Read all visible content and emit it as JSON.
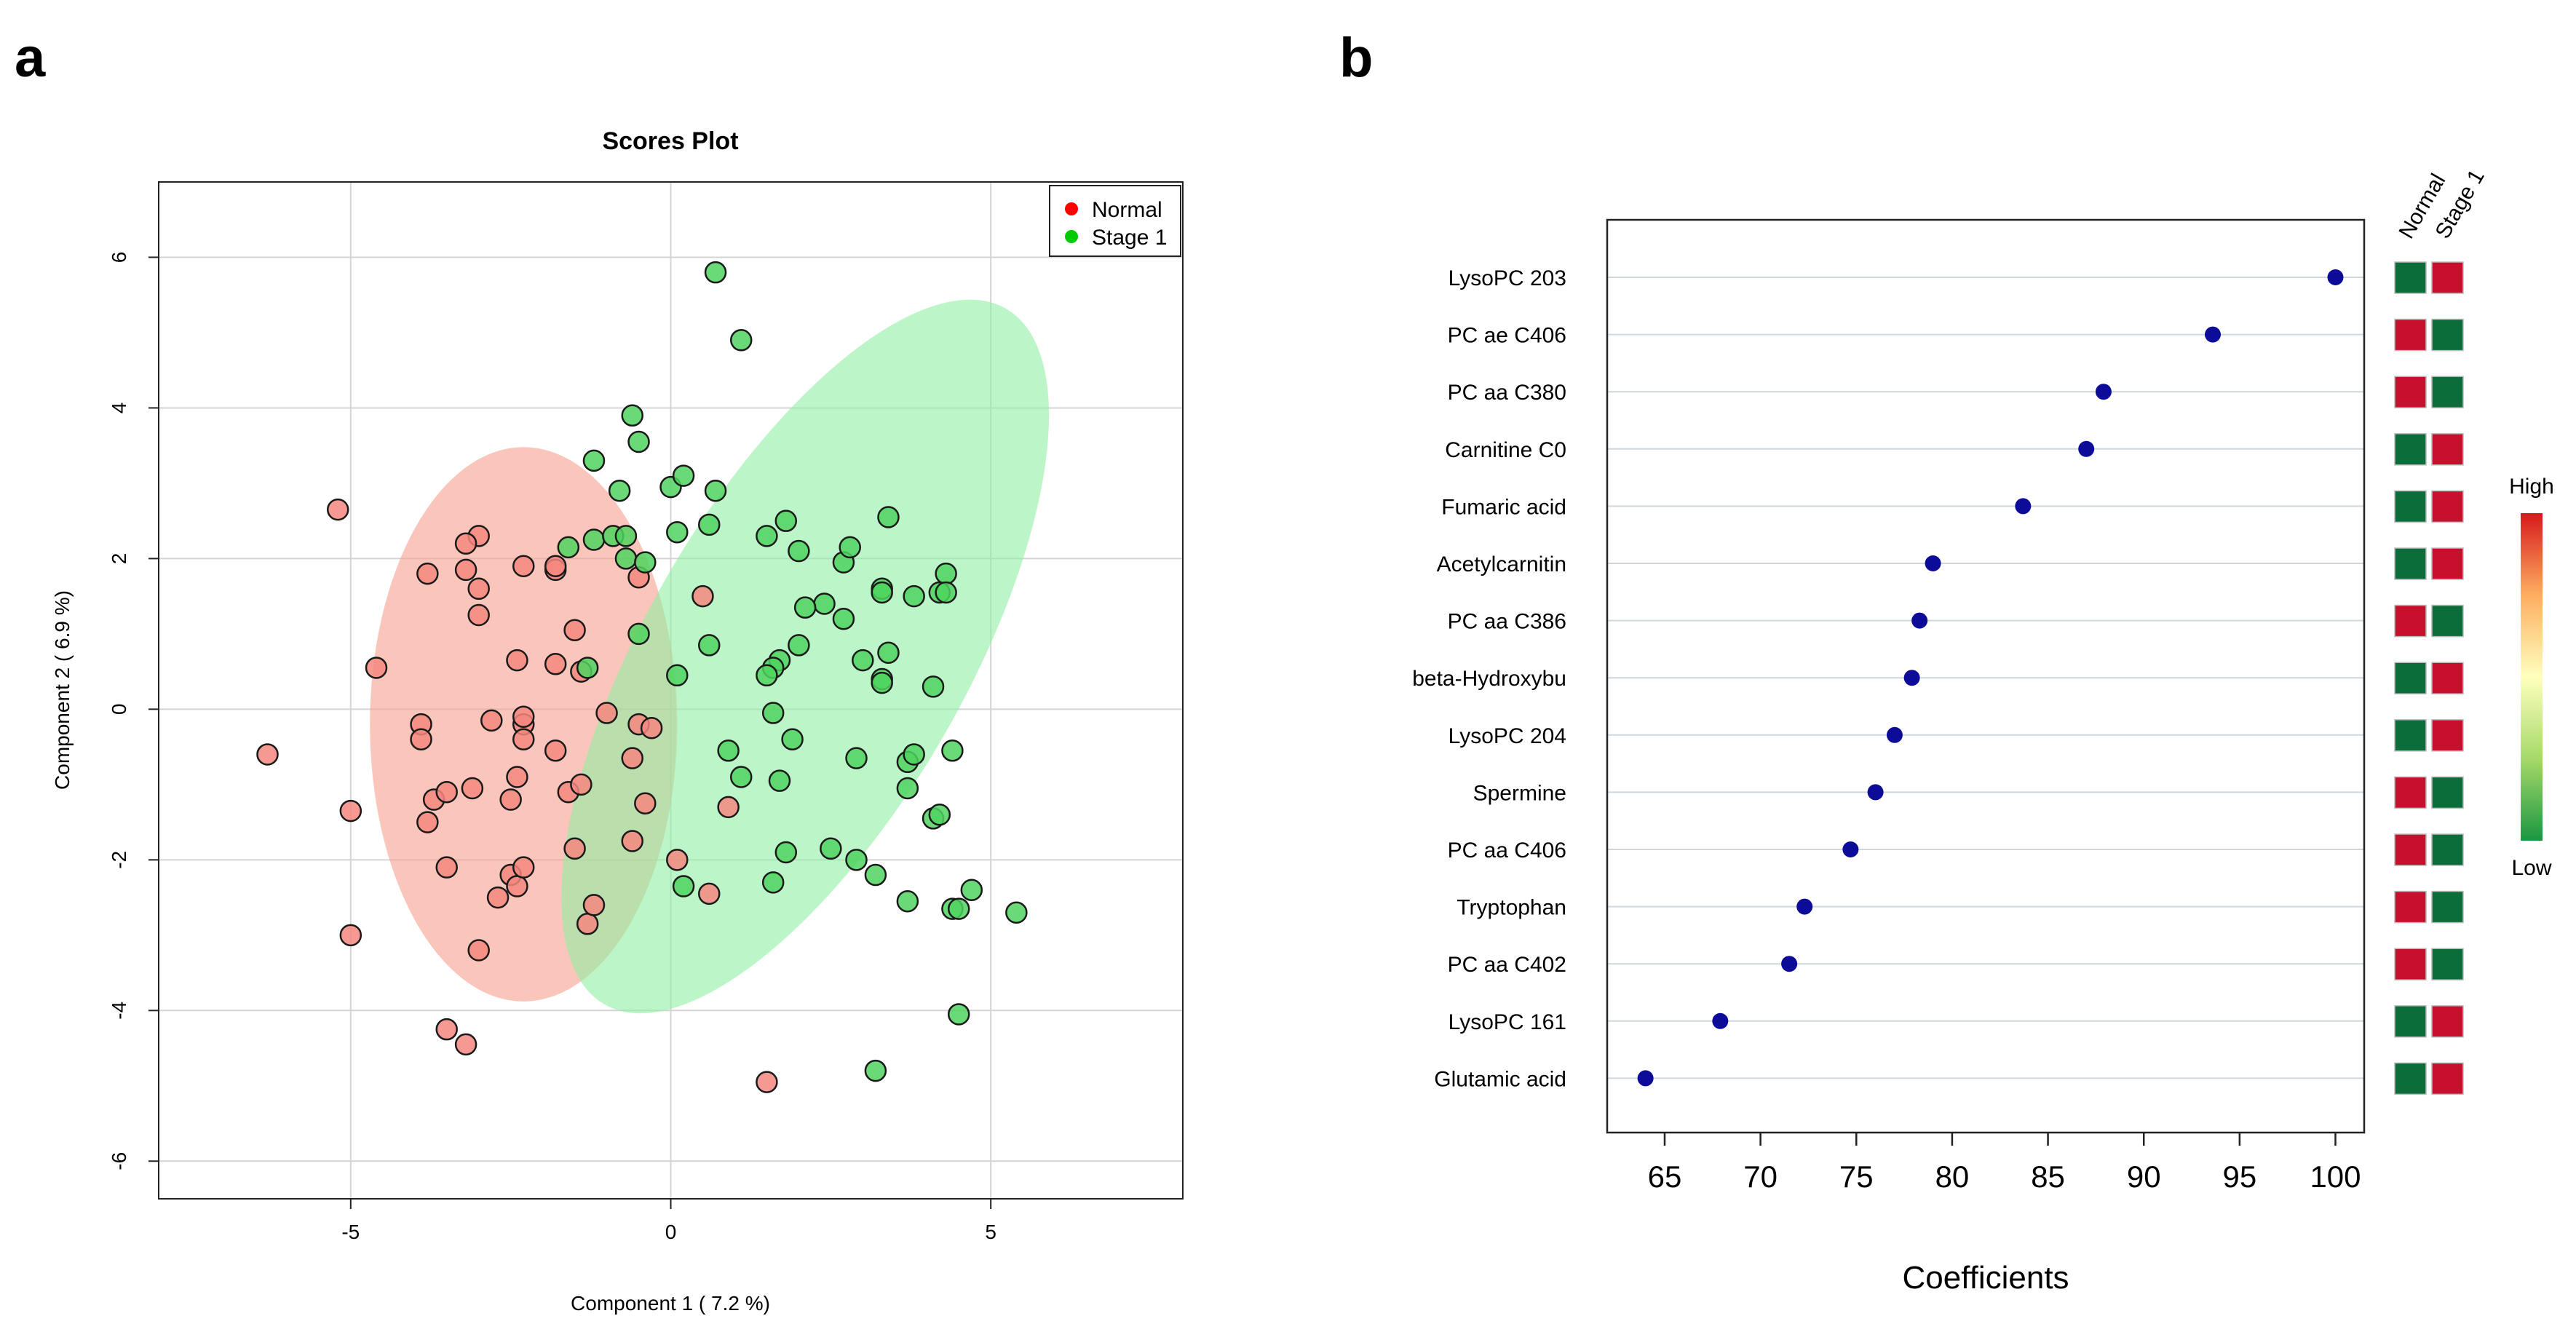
{
  "panels": {
    "a": "a",
    "b": "b"
  },
  "chart_data": [
    {
      "type": "scatter",
      "title": "Scores Plot",
      "xlabel": "Component 1 ( 7.2 %)",
      "ylabel": "Component 2 ( 6.9 %)",
      "xlim": [
        -8,
        8
      ],
      "ylim": [
        -6.5,
        7
      ],
      "xticks": [
        -5,
        0,
        5
      ],
      "yticks": [
        -6,
        -4,
        -2,
        0,
        2,
        4,
        6
      ],
      "legend": {
        "position": "top-right",
        "entries": [
          "Normal",
          "Stage 1"
        ]
      },
      "colors": {
        "Normal": "#ff0000",
        "Stage 1": "#00cc00",
        "Normal_point": "#f4877f",
        "Stage 1_point": "#4fd35f",
        "Normal_ellipse": "#f7a08f",
        "Stage 1_ellipse": "#8ff0a4"
      },
      "ellipses": [
        {
          "group": "Normal",
          "center": [
            -2.3,
            -0.2
          ],
          "rx": 3.0,
          "ry": 4.0,
          "angle_deg": 90
        },
        {
          "group": "Stage 1",
          "center": [
            2.1,
            0.7
          ],
          "rx": 6.2,
          "ry": 2.9,
          "angle_deg": -60
        }
      ],
      "series": [
        {
          "name": "Normal",
          "points": [
            [
              -5.2,
              2.65
            ],
            [
              -6.3,
              -0.6
            ],
            [
              -4.6,
              0.55
            ],
            [
              -5.0,
              -1.35
            ],
            [
              -5.0,
              -3.0
            ],
            [
              -3.9,
              -0.2
            ],
            [
              -3.9,
              -0.4
            ],
            [
              -3.8,
              -1.5
            ],
            [
              -3.7,
              -1.2
            ],
            [
              -3.8,
              1.8
            ],
            [
              -3.5,
              -1.1
            ],
            [
              -3.5,
              -2.1
            ],
            [
              -3.5,
              -4.25
            ],
            [
              -3.2,
              -4.45
            ],
            [
              -3.2,
              1.85
            ],
            [
              -3.1,
              -1.05
            ],
            [
              -3.0,
              -3.2
            ],
            [
              -3.0,
              2.3
            ],
            [
              -3.0,
              1.25
            ],
            [
              -3.0,
              1.6
            ],
            [
              -3.2,
              2.2
            ],
            [
              -2.8,
              -0.15
            ],
            [
              -2.7,
              -2.5
            ],
            [
              -2.5,
              -2.2
            ],
            [
              -2.5,
              -1.2
            ],
            [
              -2.4,
              -0.9
            ],
            [
              -2.4,
              -2.35
            ],
            [
              -2.3,
              -2.1
            ],
            [
              -2.3,
              -0.2
            ],
            [
              -2.3,
              -0.1
            ],
            [
              -2.3,
              -0.4
            ],
            [
              -2.4,
              0.65
            ],
            [
              -2.3,
              1.9
            ],
            [
              -1.8,
              1.85
            ],
            [
              -1.8,
              0.6
            ],
            [
              -1.8,
              -0.55
            ],
            [
              -1.6,
              -1.1
            ],
            [
              -1.5,
              -1.85
            ],
            [
              -1.4,
              -1.0
            ],
            [
              -1.3,
              -2.85
            ],
            [
              -1.2,
              -2.6
            ],
            [
              -1.0,
              -0.05
            ],
            [
              -0.6,
              -0.65
            ],
            [
              -0.6,
              -1.75
            ],
            [
              -0.5,
              -0.2
            ],
            [
              -0.5,
              1.75
            ],
            [
              -0.4,
              -1.25
            ],
            [
              -0.3,
              -0.25
            ],
            [
              0.1,
              -2.0
            ],
            [
              0.5,
              1.5
            ],
            [
              0.6,
              -2.45
            ],
            [
              0.9,
              -1.3
            ],
            [
              1.5,
              -4.95
            ],
            [
              -1.4,
              0.5
            ],
            [
              -1.5,
              1.05
            ],
            [
              -1.8,
              1.9
            ]
          ]
        },
        {
          "name": "Stage 1",
          "points": [
            [
              0.7,
              5.8
            ],
            [
              1.1,
              4.9
            ],
            [
              -0.6,
              3.9
            ],
            [
              -0.5,
              3.55
            ],
            [
              -1.2,
              3.3
            ],
            [
              -0.8,
              2.9
            ],
            [
              0.0,
              2.95
            ],
            [
              0.2,
              3.1
            ],
            [
              0.7,
              2.9
            ],
            [
              -1.6,
              2.15
            ],
            [
              -1.2,
              2.25
            ],
            [
              -0.9,
              2.3
            ],
            [
              -0.7,
              2.0
            ],
            [
              -0.7,
              2.3
            ],
            [
              -0.4,
              1.95
            ],
            [
              0.1,
              2.35
            ],
            [
              0.6,
              2.45
            ],
            [
              1.5,
              2.3
            ],
            [
              1.8,
              2.5
            ],
            [
              2.0,
              2.1
            ],
            [
              2.7,
              1.95
            ],
            [
              2.8,
              2.15
            ],
            [
              3.4,
              2.55
            ],
            [
              4.3,
              1.8
            ],
            [
              4.2,
              1.55
            ],
            [
              3.8,
              1.5
            ],
            [
              3.3,
              1.6
            ],
            [
              3.3,
              1.55
            ],
            [
              2.7,
              1.2
            ],
            [
              2.4,
              1.4
            ],
            [
              2.1,
              1.35
            ],
            [
              2.0,
              0.85
            ],
            [
              1.7,
              0.65
            ],
            [
              1.6,
              0.55
            ],
            [
              1.5,
              0.45
            ],
            [
              3.0,
              0.65
            ],
            [
              3.4,
              0.75
            ],
            [
              3.3,
              0.4
            ],
            [
              3.3,
              0.35
            ],
            [
              4.1,
              0.3
            ],
            [
              -0.5,
              1.0
            ],
            [
              0.1,
              0.45
            ],
            [
              0.6,
              0.85
            ],
            [
              -1.3,
              0.55
            ],
            [
              1.6,
              -0.05
            ],
            [
              1.9,
              -0.4
            ],
            [
              0.9,
              -0.55
            ],
            [
              1.1,
              -0.9
            ],
            [
              1.7,
              -0.95
            ],
            [
              2.9,
              -0.65
            ],
            [
              3.7,
              -0.7
            ],
            [
              3.8,
              -0.6
            ],
            [
              4.4,
              -0.55
            ],
            [
              3.7,
              -1.05
            ],
            [
              4.1,
              -1.45
            ],
            [
              4.2,
              -1.4
            ],
            [
              1.8,
              -1.9
            ],
            [
              2.5,
              -1.85
            ],
            [
              2.9,
              -2.0
            ],
            [
              3.2,
              -2.2
            ],
            [
              1.6,
              -2.3
            ],
            [
              0.2,
              -2.35
            ],
            [
              3.7,
              -2.55
            ],
            [
              4.4,
              -2.65
            ],
            [
              4.5,
              -2.65
            ],
            [
              4.7,
              -2.4
            ],
            [
              5.4,
              -2.7
            ],
            [
              4.5,
              -4.05
            ],
            [
              3.2,
              -4.8
            ],
            [
              4.3,
              1.55
            ]
          ]
        }
      ]
    },
    {
      "type": "dot",
      "xlabel": "Coefficients",
      "xlim": [
        62,
        101.5
      ],
      "xticks": [
        65,
        70,
        75,
        80,
        85,
        90,
        95,
        100
      ],
      "features": [
        "LysoPC 203",
        "PC ae C406",
        "PC aa C380",
        "Carnitine C0",
        "Fumaric acid",
        "Acetylcarnitin",
        "PC aa C386",
        "beta-Hydroxybu",
        "LysoPC 204",
        "Spermine",
        "PC aa C406",
        "Tryptophan",
        "PC aa C402",
        "LysoPC 161",
        "Glutamic acid"
      ],
      "values": [
        100,
        93.6,
        87.9,
        87.0,
        83.7,
        79.0,
        78.3,
        77.9,
        77.0,
        76.0,
        74.7,
        72.3,
        71.5,
        67.9,
        64.0
      ],
      "heatmap": {
        "columns": [
          "Normal",
          "Stage 1"
        ],
        "cells": [
          [
            "low",
            "high"
          ],
          [
            "high",
            "low"
          ],
          [
            "high",
            "low"
          ],
          [
            "low",
            "high"
          ],
          [
            "low",
            "high"
          ],
          [
            "low",
            "high"
          ],
          [
            "high",
            "low"
          ],
          [
            "low",
            "high"
          ],
          [
            "low",
            "high"
          ],
          [
            "high",
            "low"
          ],
          [
            "high",
            "low"
          ],
          [
            "high",
            "low"
          ],
          [
            "high",
            "low"
          ],
          [
            "low",
            "high"
          ],
          [
            "low",
            "high"
          ]
        ],
        "high_color": "#c8102e",
        "low_color": "#0b6e3a"
      },
      "colorbar": {
        "high_label": "High",
        "low_label": "Low",
        "colors": [
          "#d7191c",
          "#fdae61",
          "#ffffbf",
          "#a6d96a",
          "#1a9641"
        ]
      },
      "dot_color": "#0c0c99"
    }
  ]
}
